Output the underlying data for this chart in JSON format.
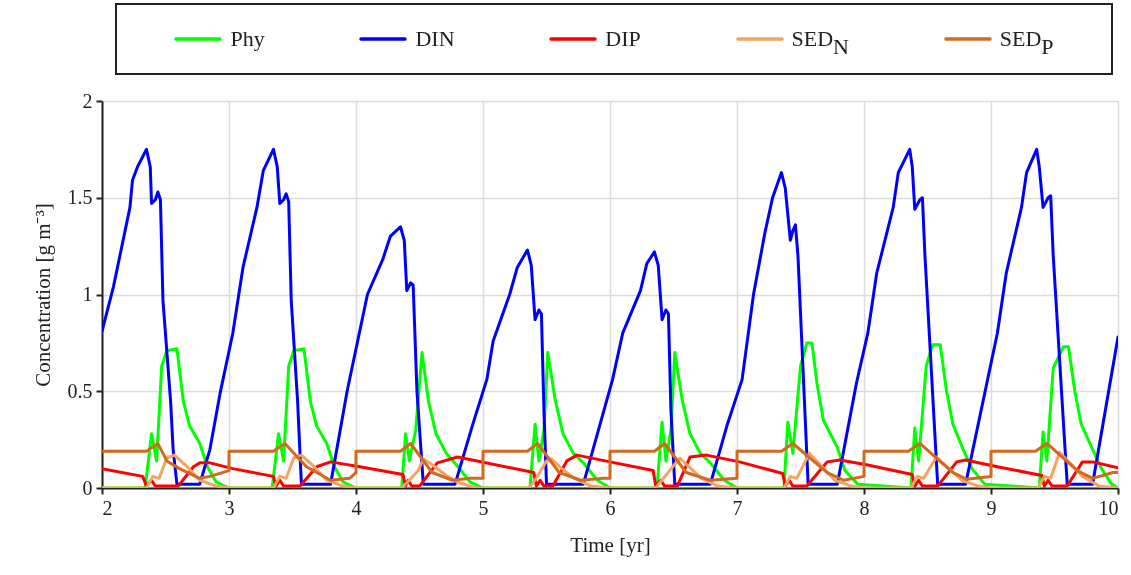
{
  "chart_data": {
    "type": "line",
    "xlabel": "Time [yr]",
    "ylabel": "Concentration [g m⁻³]",
    "xlim": [
      2,
      10
    ],
    "xticks": [
      2,
      3,
      4,
      5,
      6,
      7,
      8,
      9,
      10
    ],
    "ylim": [
      0,
      2
    ],
    "yticks": [
      0,
      0.5,
      1,
      1.5,
      2
    ],
    "grid": true,
    "legend": "top",
    "series": [
      {
        "name": "Phy",
        "color": "#00ff00",
        "x": [
          2,
          2.34,
          2.39,
          2.43,
          2.47,
          2.51,
          2.59,
          2.64,
          2.69,
          2.77,
          2.83,
          2.9,
          3.0,
          3.34,
          3.39,
          3.43,
          3.47,
          3.51,
          3.59,
          3.64,
          3.69,
          3.77,
          3.83,
          3.9,
          4.0,
          4.36,
          4.39,
          4.42,
          4.47,
          4.52,
          4.57,
          4.63,
          4.71,
          4.79,
          4.9,
          5.0,
          5.37,
          5.41,
          5.44,
          5.48,
          5.51,
          5.57,
          5.63,
          5.71,
          5.79,
          5.9,
          6.0,
          6.37,
          6.41,
          6.44,
          6.48,
          6.51,
          6.57,
          6.63,
          6.71,
          6.79,
          6.9,
          7.0,
          7.37,
          7.4,
          7.44,
          7.5,
          7.55,
          7.59,
          7.63,
          7.68,
          7.79,
          7.85,
          7.95,
          8.37,
          8.4,
          8.43,
          8.49,
          8.54,
          8.6,
          8.65,
          8.7,
          8.78,
          8.85,
          8.95,
          9.38,
          9.41,
          9.44,
          9.49,
          9.57,
          9.61,
          9.66,
          9.71,
          9.8,
          9.87,
          9.95,
          10
        ],
        "values": [
          0,
          0,
          0.28,
          0.14,
          0.63,
          0.71,
          0.72,
          0.45,
          0.32,
          0.23,
          0.11,
          0.03,
          0,
          0,
          0.28,
          0.14,
          0.63,
          0.71,
          0.72,
          0.45,
          0.32,
          0.23,
          0.11,
          0.03,
          0,
          0,
          0.28,
          0.14,
          0.3,
          0.7,
          0.45,
          0.28,
          0.18,
          0.12,
          0.03,
          0,
          0,
          0.33,
          0.14,
          0.3,
          0.7,
          0.45,
          0.28,
          0.18,
          0.13,
          0.04,
          0,
          0,
          0.34,
          0.14,
          0.3,
          0.7,
          0.45,
          0.28,
          0.18,
          0.13,
          0.04,
          0,
          0,
          0.34,
          0.18,
          0.63,
          0.75,
          0.75,
          0.54,
          0.35,
          0.21,
          0.09,
          0.02,
          0,
          0.31,
          0.14,
          0.63,
          0.74,
          0.74,
          0.5,
          0.33,
          0.2,
          0.1,
          0.02,
          0,
          0.29,
          0.14,
          0.62,
          0.73,
          0.73,
          0.5,
          0.33,
          0.2,
          0.1,
          0.02,
          0
        ]
      },
      {
        "name": "DIN",
        "color": "#0000ff",
        "x": [
          2.0,
          2.09,
          2.22,
          2.24,
          2.28,
          2.35,
          2.38,
          2.39,
          2.42,
          2.44,
          2.46,
          2.48,
          2.54,
          2.56,
          2.59,
          2.77,
          2.85,
          2.93,
          3.03,
          3.11,
          3.22,
          3.27,
          3.35,
          3.38,
          3.4,
          3.43,
          3.45,
          3.47,
          3.49,
          3.54,
          3.57,
          3.8,
          3.93,
          4.09,
          4.21,
          4.27,
          4.35,
          4.38,
          4.4,
          4.43,
          4.45,
          4.48,
          4.53,
          4.78,
          4.92,
          5.03,
          5.08,
          5.21,
          5.27,
          5.35,
          5.38,
          5.41,
          5.44,
          5.46,
          5.48,
          5.5,
          5.79,
          6.02,
          6.1,
          6.24,
          6.29,
          6.35,
          6.38,
          6.41,
          6.44,
          6.46,
          6.48,
          6.51,
          6.79,
          6.92,
          7.04,
          7.13,
          7.22,
          7.28,
          7.35,
          7.38,
          7.42,
          7.44,
          7.46,
          7.48,
          7.56,
          7.79,
          7.94,
          8.03,
          8.1,
          8.23,
          8.27,
          8.36,
          8.38,
          8.4,
          8.44,
          8.46,
          8.48,
          8.58,
          8.8,
          9.05,
          9.12,
          9.24,
          9.28,
          9.36,
          9.38,
          9.41,
          9.45,
          9.47,
          9.49,
          9.6,
          9.8,
          10.0
        ],
        "values": [
          0.81,
          1.04,
          1.45,
          1.59,
          1.66,
          1.75,
          1.66,
          1.47,
          1.49,
          1.53,
          1.49,
          0.97,
          0.45,
          0.2,
          0.02,
          0.02,
          0.2,
          0.49,
          0.8,
          1.14,
          1.45,
          1.64,
          1.75,
          1.66,
          1.47,
          1.49,
          1.52,
          1.48,
          0.97,
          0.45,
          0.02,
          0.02,
          0.5,
          1.0,
          1.18,
          1.3,
          1.35,
          1.28,
          1.02,
          1.06,
          1.05,
          0.5,
          0.02,
          0.02,
          0.33,
          0.56,
          0.76,
          1.0,
          1.14,
          1.23,
          1.15,
          0.87,
          0.92,
          0.9,
          0.4,
          0.02,
          0.02,
          0.56,
          0.8,
          1.02,
          1.16,
          1.22,
          1.15,
          0.87,
          0.92,
          0.9,
          0.4,
          0.02,
          0.02,
          0.32,
          0.56,
          1.0,
          1.32,
          1.5,
          1.63,
          1.55,
          1.28,
          1.33,
          1.36,
          1.2,
          0.02,
          0.02,
          0.54,
          0.8,
          1.11,
          1.45,
          1.63,
          1.75,
          1.66,
          1.44,
          1.49,
          1.5,
          1.2,
          0.02,
          0.02,
          0.8,
          1.11,
          1.45,
          1.63,
          1.75,
          1.66,
          1.45,
          1.5,
          1.51,
          1.2,
          0.02,
          0.02,
          0.78
        ]
      },
      {
        "name": "DIP",
        "color": "#ff0000",
        "x": [
          2.0,
          2.32,
          2.35,
          2.39,
          2.42,
          2.6,
          2.72,
          2.77,
          2.85,
          3.03,
          3.35,
          3.37,
          3.4,
          3.43,
          3.56,
          3.69,
          3.8,
          4.03,
          4.37,
          4.39,
          4.41,
          4.44,
          4.5,
          4.64,
          4.8,
          5.4,
          5.42,
          5.45,
          5.48,
          5.55,
          5.66,
          5.74,
          6.0,
          6.34,
          6.36,
          6.4,
          6.43,
          6.53,
          6.63,
          6.76,
          7.02,
          7.36,
          7.38,
          7.41,
          7.44,
          7.55,
          7.71,
          7.81,
          8.02,
          8.38,
          8.4,
          8.43,
          8.46,
          8.58,
          8.73,
          8.8,
          9.05,
          9.4,
          9.42,
          9.45,
          9.48,
          9.6,
          9.72,
          9.8,
          10.0
        ],
        "values": [
          0.1,
          0.06,
          0.01,
          0.04,
          0.01,
          0.01,
          0.11,
          0.13,
          0.13,
          0.1,
          0.06,
          0.01,
          0.04,
          0.01,
          0.01,
          0.11,
          0.135,
          0.11,
          0.07,
          0.01,
          0.04,
          0.01,
          0.01,
          0.13,
          0.16,
          0.08,
          0.01,
          0.04,
          0.01,
          0.01,
          0.14,
          0.17,
          0.135,
          0.09,
          0.01,
          0.04,
          0.01,
          0.01,
          0.16,
          0.17,
          0.135,
          0.075,
          0.01,
          0.04,
          0.01,
          0.01,
          0.135,
          0.145,
          0.12,
          0.07,
          0.01,
          0.04,
          0.01,
          0.01,
          0.135,
          0.145,
          0.11,
          0.065,
          0.01,
          0.04,
          0.01,
          0.01,
          0.135,
          0.135,
          0.105
        ]
      },
      {
        "name": "SED$_{N}$",
        "color": "#f4a460",
        "x": [
          2.0,
          2.35,
          2.4,
          2.45,
          2.51,
          2.57,
          2.67,
          2.77,
          2.9,
          3.0,
          3.35,
          3.4,
          3.45,
          3.51,
          3.57,
          3.67,
          3.77,
          3.9,
          4.0,
          4.36,
          4.42,
          4.49,
          4.53,
          4.6,
          4.7,
          4.8,
          4.95,
          5.36,
          5.42,
          5.5,
          5.54,
          5.62,
          5.72,
          5.85,
          6.0,
          6.36,
          6.42,
          6.55,
          6.62,
          6.72,
          6.85,
          7.0,
          7.37,
          7.42,
          7.47,
          7.57,
          7.67,
          7.77,
          7.9,
          8.0,
          8.37,
          8.42,
          8.47,
          8.57,
          8.67,
          8.77,
          8.9,
          9.0,
          9.37,
          9.42,
          9.47,
          9.54,
          9.62,
          9.72,
          9.85,
          10.0
        ],
        "values": [
          0,
          0,
          0.06,
          0.05,
          0.155,
          0.17,
          0.11,
          0.04,
          0.01,
          0,
          0,
          0.06,
          0.05,
          0.155,
          0.17,
          0.11,
          0.04,
          0.01,
          0,
          0,
          0.04,
          0.09,
          0.15,
          0.12,
          0.07,
          0.03,
          0,
          0,
          0.05,
          0.14,
          0.15,
          0.1,
          0.05,
          0.01,
          0,
          0,
          0.05,
          0.155,
          0.11,
          0.05,
          0.01,
          0,
          0,
          0.06,
          0.05,
          0.18,
          0.11,
          0.04,
          0.01,
          0,
          0,
          0.06,
          0.05,
          0.16,
          0.1,
          0.04,
          0.01,
          0,
          0,
          0.06,
          0.05,
          0.185,
          0.13,
          0.06,
          0.01,
          0
        ]
      },
      {
        "name": "SED$_{P}$",
        "color": "#d2691e",
        "x": [
          2.0,
          2.35,
          2.44,
          2.51,
          2.61,
          2.77,
          2.85,
          3.0,
          3.0,
          3.35,
          3.44,
          3.61,
          3.8,
          3.95,
          4.0,
          4.0,
          4.35,
          4.43,
          4.6,
          4.76,
          4.9,
          5.0,
          5.0,
          5.35,
          5.43,
          5.6,
          5.77,
          5.95,
          6.0,
          6.0,
          6.35,
          6.43,
          6.6,
          6.79,
          7.0,
          7.0,
          7.35,
          7.44,
          7.71,
          7.84,
          8.0,
          8.0,
          8.35,
          8.44,
          8.7,
          8.81,
          9.0,
          9.0,
          9.35,
          9.44,
          9.68,
          9.8,
          9.96,
          10.0
        ],
        "values": [
          0.19,
          0.19,
          0.23,
          0.14,
          0.1,
          0.05,
          0.06,
          0.09,
          0.19,
          0.19,
          0.23,
          0.11,
          0.04,
          0.05,
          0.08,
          0.19,
          0.19,
          0.23,
          0.08,
          0.04,
          0.05,
          0.05,
          0.19,
          0.19,
          0.23,
          0.08,
          0.04,
          0.05,
          0.05,
          0.19,
          0.19,
          0.23,
          0.08,
          0.04,
          0.05,
          0.19,
          0.19,
          0.23,
          0.08,
          0.04,
          0.06,
          0.19,
          0.19,
          0.23,
          0.08,
          0.045,
          0.06,
          0.19,
          0.19,
          0.23,
          0.09,
          0.05,
          0.08,
          0.08
        ]
      }
    ]
  }
}
